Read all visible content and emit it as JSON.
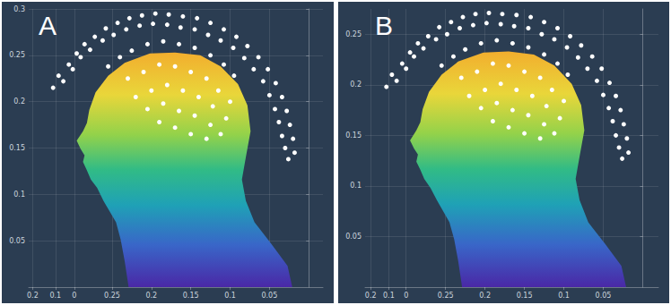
{
  "chart_data": [
    {
      "type": "scatter",
      "title": "A",
      "xlim": [
        0.356,
        -0.018
      ],
      "ylim": [
        0,
        0.3
      ],
      "xticks": [
        {
          "value": 0.351,
          "label": "0.2"
        },
        {
          "value": 0.322,
          "label": "0.1"
        },
        {
          "value": 0.298,
          "label": "0"
        },
        0.25,
        0.2,
        0.15,
        0.1,
        0.05
      ],
      "yticks": [
        0.05,
        0.1,
        0.15,
        0.2,
        0.25,
        0.3
      ],
      "grid": true,
      "series": [
        {
          "type": "polygon",
          "x": [
            0.229,
            0.234,
            0.239,
            0.245,
            0.261,
            0.269,
            0.277,
            0.282,
            0.287,
            0.285,
            0.29,
            0.295,
            0.287,
            0.282,
            0.279,
            0.271,
            0.255,
            0.234,
            0.202,
            0.17,
            0.138,
            0.112,
            0.09,
            0.078,
            0.074,
            0.08,
            0.085,
            0.08,
            0.069,
            0.048,
            0.027,
            0.021
          ],
          "y": [
            0,
            0.028,
            0.051,
            0.07,
            0.093,
            0.107,
            0.116,
            0.126,
            0.135,
            0.142,
            0.149,
            0.158,
            0.168,
            0.177,
            0.191,
            0.21,
            0.228,
            0.242,
            0.252,
            0.253,
            0.25,
            0.238,
            0.219,
            0.196,
            0.168,
            0.14,
            0.116,
            0.093,
            0.07,
            0.047,
            0.023,
            0
          ]
        },
        {
          "type": "scatter",
          "color": "#ffffff",
          "marker": "circle",
          "x": [
            0.325,
            0.318,
            0.305,
            0.312,
            0.295,
            0.3,
            0.285,
            0.29,
            0.272,
            0.278,
            0.258,
            0.262,
            0.243,
            0.248,
            0.228,
            0.232,
            0.212,
            0.215,
            0.195,
            0.198,
            0.178,
            0.18,
            0.16,
            0.163,
            0.142,
            0.145,
            0.125,
            0.128,
            0.108,
            0.112,
            0.092,
            0.096,
            0.078,
            0.082,
            0.064,
            0.07,
            0.052,
            0.058,
            0.042,
            0.05,
            0.034,
            0.043,
            0.028,
            0.038,
            0.024,
            0.034,
            0.02,
            0.03,
            0.018,
            0.026,
            0.255,
            0.24,
            0.225,
            0.205,
            0.185,
            0.165,
            0.145,
            0.125,
            0.108,
            0.095,
            0.23,
            0.21,
            0.19,
            0.17,
            0.15,
            0.13,
            0.115,
            0.1,
            0.22,
            0.2,
            0.18,
            0.16,
            0.14,
            0.122,
            0.105,
            0.205,
            0.185,
            0.165,
            0.145,
            0.125,
            0.19,
            0.17,
            0.15,
            0.13,
            0.112
          ],
          "y": [
            0.215,
            0.228,
            0.24,
            0.222,
            0.252,
            0.235,
            0.262,
            0.248,
            0.27,
            0.256,
            0.279,
            0.266,
            0.285,
            0.272,
            0.29,
            0.278,
            0.293,
            0.282,
            0.295,
            0.284,
            0.294,
            0.283,
            0.292,
            0.28,
            0.29,
            0.278,
            0.285,
            0.272,
            0.278,
            0.266,
            0.27,
            0.258,
            0.26,
            0.247,
            0.248,
            0.235,
            0.235,
            0.222,
            0.22,
            0.207,
            0.205,
            0.192,
            0.19,
            0.178,
            0.175,
            0.163,
            0.16,
            0.15,
            0.145,
            0.138,
            0.238,
            0.248,
            0.255,
            0.262,
            0.265,
            0.262,
            0.258,
            0.25,
            0.24,
            0.228,
            0.225,
            0.232,
            0.24,
            0.238,
            0.232,
            0.225,
            0.212,
            0.2,
            0.205,
            0.212,
            0.218,
            0.212,
            0.205,
            0.195,
            0.182,
            0.192,
            0.198,
            0.19,
            0.185,
            0.175,
            0.178,
            0.172,
            0.165,
            0.16,
            0.165
          ]
        }
      ]
    },
    {
      "type": "scatter",
      "title": "B",
      "xlim": [
        0.352,
        -0.02
      ],
      "ylim": [
        0,
        0.275
      ],
      "xticks": [
        {
          "value": 0.345,
          "label": "0.2"
        },
        {
          "value": 0.322,
          "label": "0.1"
        },
        {
          "value": 0.3,
          "label": "0"
        },
        0.25,
        0.2,
        0.15,
        0.1,
        0.05
      ],
      "yticks": [
        0.05,
        0.1,
        0.15,
        0.2,
        0.25
      ],
      "grid": true,
      "series": [
        {
          "type": "polygon",
          "x": [
            0.229,
            0.234,
            0.239,
            0.245,
            0.261,
            0.269,
            0.277,
            0.282,
            0.287,
            0.285,
            0.29,
            0.295,
            0.287,
            0.282,
            0.279,
            0.271,
            0.255,
            0.234,
            0.202,
            0.17,
            0.138,
            0.112,
            0.09,
            0.078,
            0.074,
            0.08,
            0.085,
            0.08,
            0.069,
            0.048,
            0.027,
            0.021
          ],
          "y": [
            0,
            0.026,
            0.047,
            0.064,
            0.086,
            0.098,
            0.107,
            0.116,
            0.124,
            0.131,
            0.137,
            0.145,
            0.155,
            0.163,
            0.176,
            0.193,
            0.21,
            0.223,
            0.232,
            0.233,
            0.23,
            0.219,
            0.201,
            0.18,
            0.155,
            0.129,
            0.107,
            0.086,
            0.064,
            0.043,
            0.021,
            0
          ]
        },
        {
          "type": "scatter",
          "color": "#ffffff",
          "marker": "circle",
          "x": [
            0.325,
            0.318,
            0.305,
            0.312,
            0.295,
            0.3,
            0.285,
            0.29,
            0.272,
            0.278,
            0.258,
            0.262,
            0.243,
            0.248,
            0.228,
            0.232,
            0.212,
            0.215,
            0.195,
            0.198,
            0.178,
            0.18,
            0.16,
            0.163,
            0.142,
            0.145,
            0.125,
            0.128,
            0.108,
            0.112,
            0.092,
            0.096,
            0.078,
            0.082,
            0.064,
            0.07,
            0.052,
            0.058,
            0.042,
            0.05,
            0.034,
            0.043,
            0.028,
            0.038,
            0.024,
            0.034,
            0.02,
            0.03,
            0.018,
            0.026,
            0.255,
            0.24,
            0.225,
            0.205,
            0.185,
            0.165,
            0.145,
            0.125,
            0.108,
            0.095,
            0.23,
            0.21,
            0.19,
            0.17,
            0.15,
            0.13,
            0.115,
            0.1,
            0.22,
            0.2,
            0.18,
            0.16,
            0.14,
            0.122,
            0.105,
            0.205,
            0.185,
            0.165,
            0.145,
            0.125,
            0.19,
            0.17,
            0.15,
            0.13,
            0.112
          ],
          "y": [
            0.198,
            0.21,
            0.221,
            0.204,
            0.232,
            0.216,
            0.241,
            0.228,
            0.248,
            0.236,
            0.257,
            0.245,
            0.262,
            0.25,
            0.267,
            0.256,
            0.27,
            0.259,
            0.271,
            0.261,
            0.27,
            0.26,
            0.269,
            0.258,
            0.267,
            0.256,
            0.262,
            0.25,
            0.256,
            0.245,
            0.248,
            0.237,
            0.239,
            0.227,
            0.228,
            0.216,
            0.216,
            0.204,
            0.202,
            0.19,
            0.189,
            0.177,
            0.175,
            0.164,
            0.161,
            0.15,
            0.147,
            0.138,
            0.133,
            0.127,
            0.219,
            0.228,
            0.235,
            0.241,
            0.244,
            0.241,
            0.237,
            0.23,
            0.221,
            0.21,
            0.207,
            0.213,
            0.221,
            0.219,
            0.213,
            0.207,
            0.195,
            0.184,
            0.189,
            0.195,
            0.201,
            0.195,
            0.189,
            0.179,
            0.167,
            0.177,
            0.182,
            0.175,
            0.17,
            0.161,
            0.164,
            0.158,
            0.152,
            0.147,
            0.152
          ]
        }
      ]
    }
  ]
}
